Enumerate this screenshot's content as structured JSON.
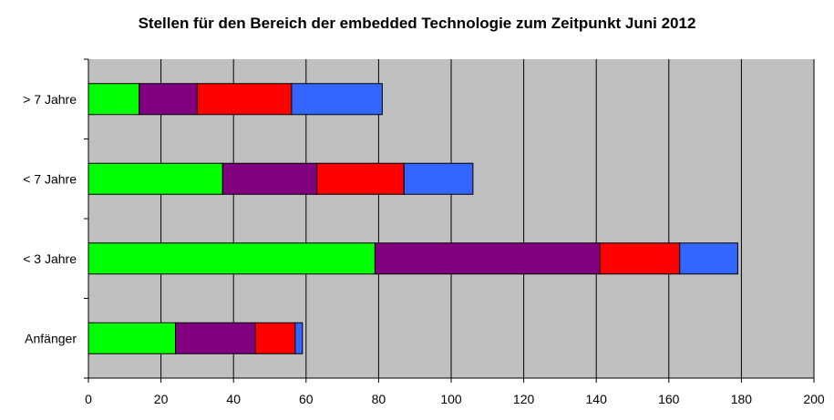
{
  "chart_data": {
    "type": "bar",
    "orientation": "horizontal",
    "stacked": true,
    "title": "Stellen für den Bereich der embedded Technologie zum Zeitpunkt Juni 2012",
    "xlabel": "",
    "ylabel": "",
    "categories": [
      "Anfänger",
      "< 3 Jahre",
      "< 7 Jahre",
      "> 7 Jahre"
    ],
    "series": [
      {
        "color": "#00ff00",
        "values": [
          24,
          79,
          37,
          14
        ]
      },
      {
        "color": "#800080",
        "values": [
          22,
          62,
          26,
          16
        ]
      },
      {
        "color": "#ff0000",
        "values": [
          11,
          22,
          24,
          26
        ]
      },
      {
        "color": "#3366ff",
        "values": [
          2,
          16,
          19,
          25
        ]
      }
    ],
    "xlim": [
      0,
      200
    ],
    "xticks": [
      0,
      20,
      40,
      60,
      80,
      100,
      120,
      140,
      160,
      180,
      200
    ],
    "grid": "vertical",
    "legend": "none",
    "plot_background": "#c0c0c0"
  }
}
